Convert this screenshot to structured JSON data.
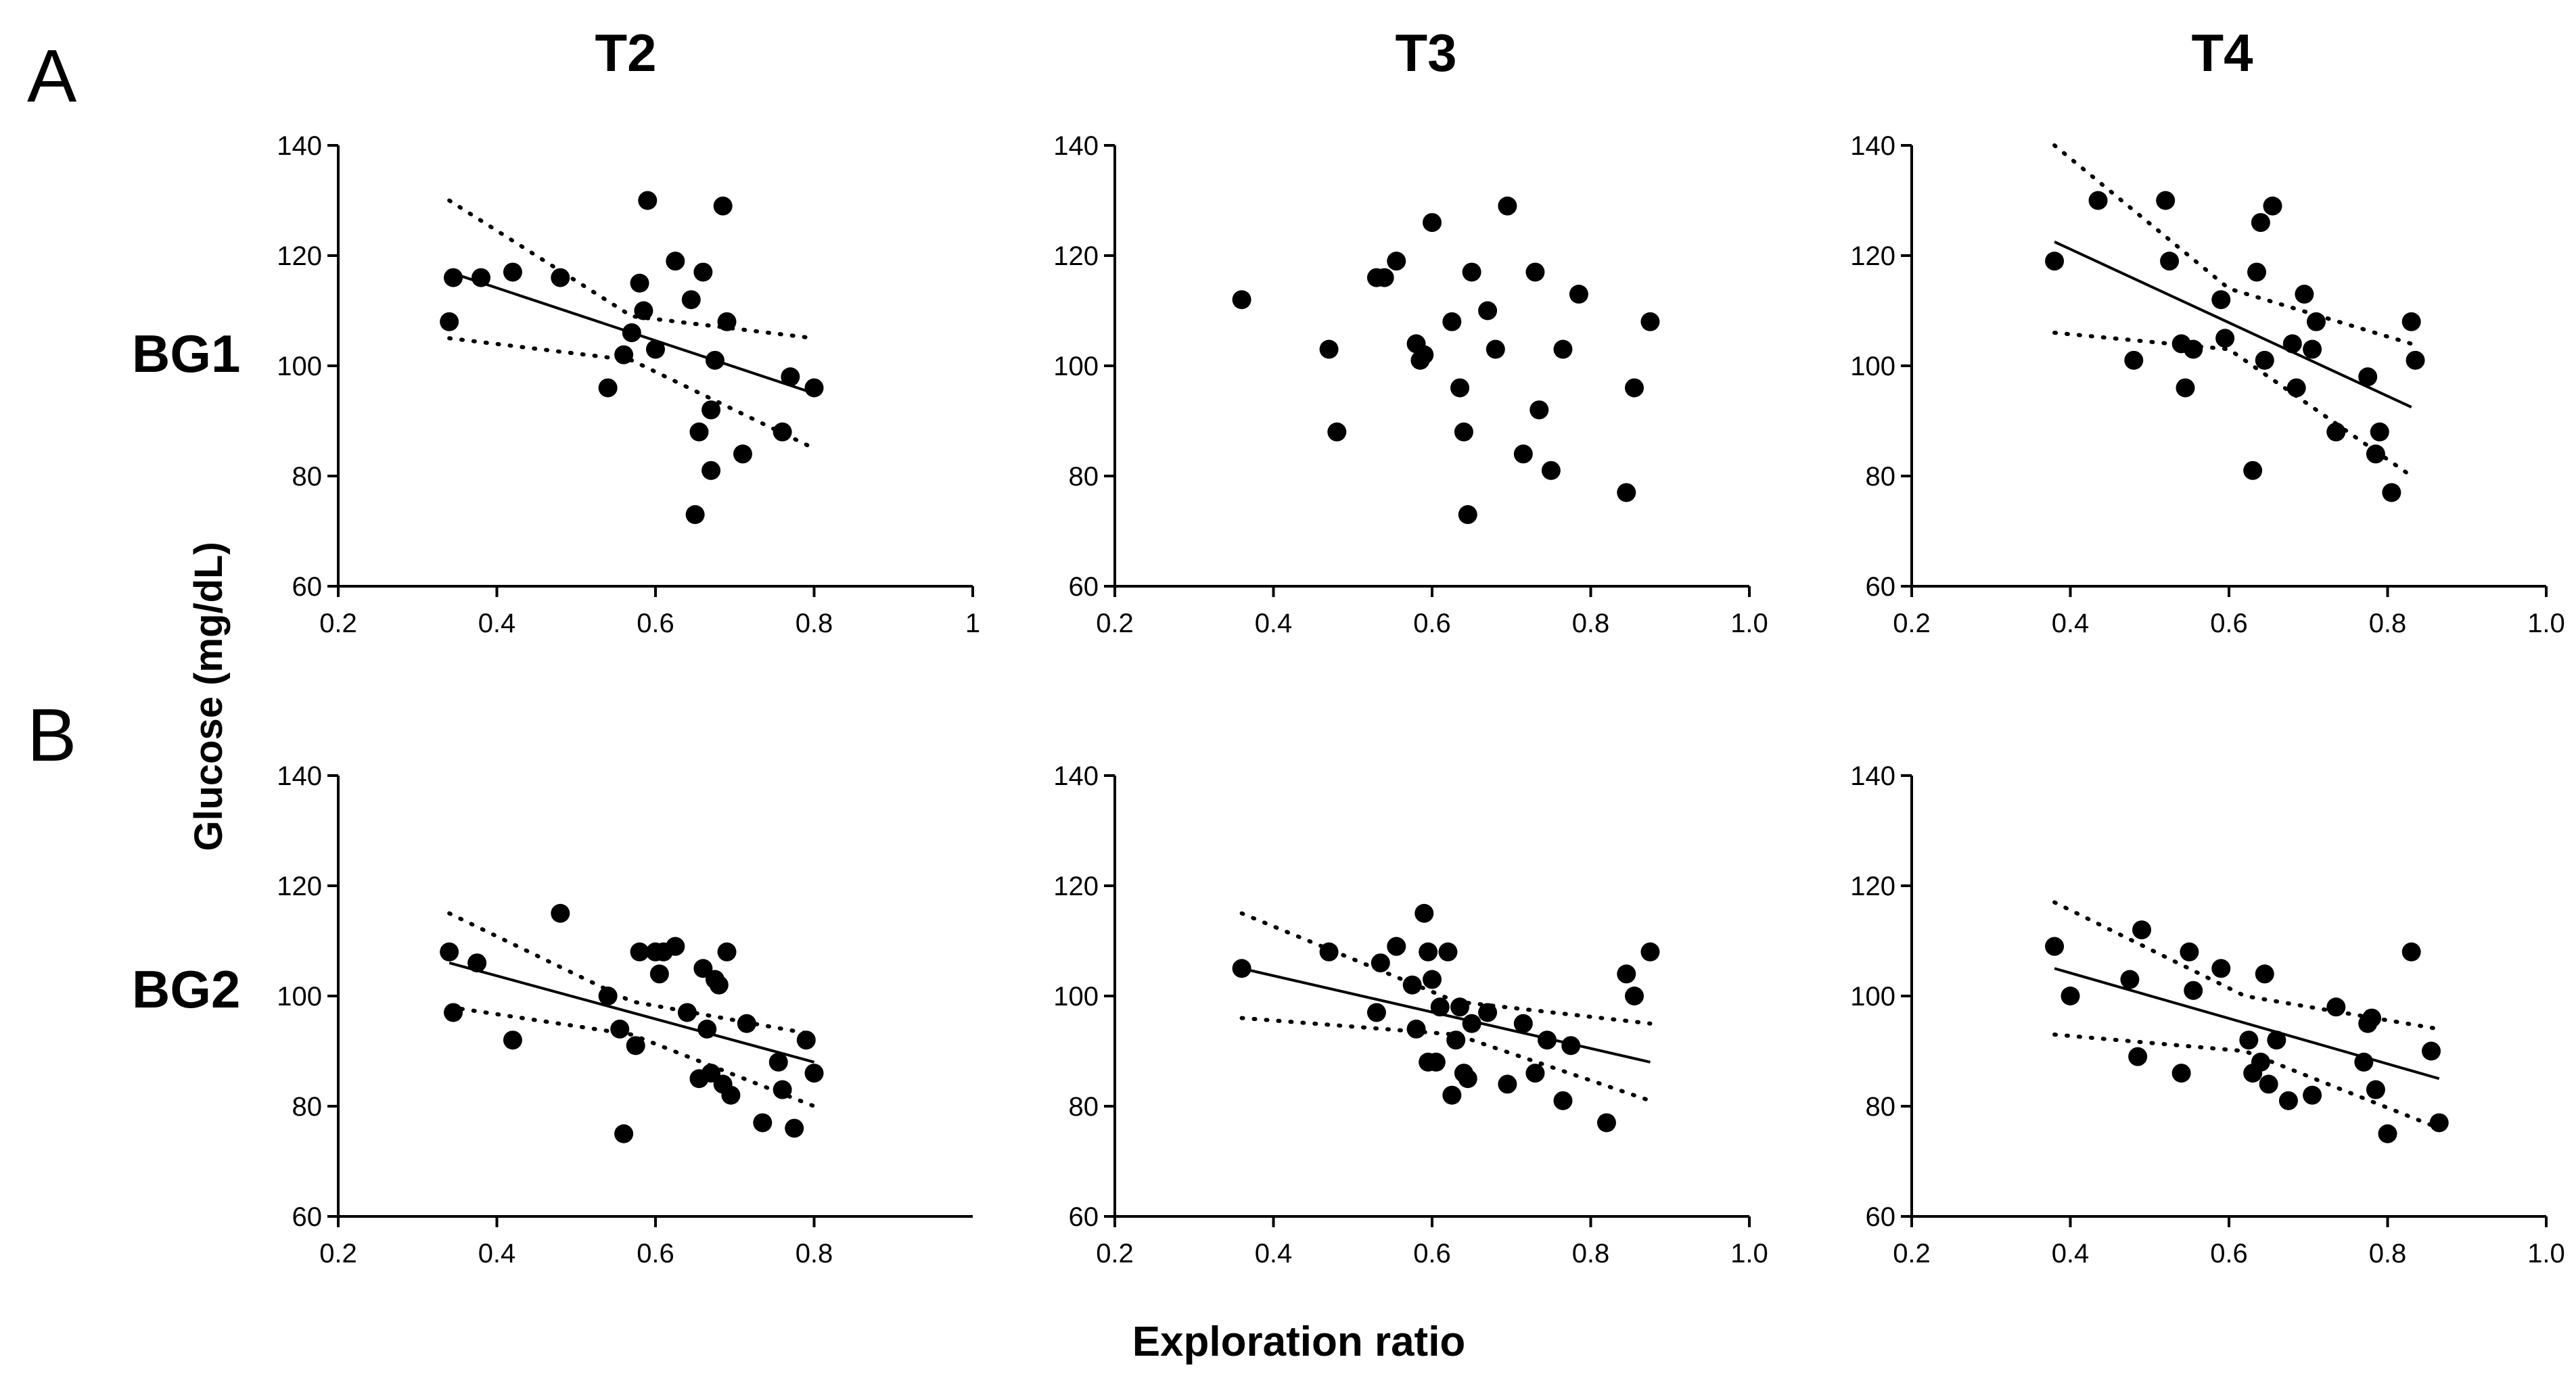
{
  "panel_labels": {
    "a": "A",
    "b": "B"
  },
  "column_titles": [
    "T2",
    "T3",
    "T4"
  ],
  "row_labels": [
    "BG1",
    "BG2"
  ],
  "shared_ylabel": "Glucose (mg/dL)",
  "shared_xlabel": "Exploration ratio",
  "colors": {
    "ink": "#000000",
    "background": "#ffffff"
  },
  "chart_data": [
    {
      "id": "A-T2",
      "type": "scatter",
      "row": 0,
      "col": 0,
      "xlim": [
        0.2,
        1.0
      ],
      "ylim": [
        60,
        140
      ],
      "xticks": [
        0.2,
        0.4,
        0.6,
        0.8,
        1.0
      ],
      "xtick_labels": [
        "0.2",
        "0.4",
        "0.6",
        "0.8",
        "1"
      ],
      "yticks": [
        60,
        80,
        100,
        120,
        140
      ],
      "ytick_labels": [
        "60",
        "80",
        "100",
        "120",
        "140"
      ],
      "x": [
        0.34,
        0.345,
        0.38,
        0.42,
        0.48,
        0.54,
        0.56,
        0.57,
        0.58,
        0.585,
        0.59,
        0.6,
        0.625,
        0.645,
        0.65,
        0.655,
        0.66,
        0.67,
        0.67,
        0.675,
        0.685,
        0.69,
        0.71,
        0.76,
        0.77,
        0.8
      ],
      "y": [
        108,
        116,
        116,
        117,
        116,
        96,
        102,
        106,
        115,
        110,
        130,
        103,
        119,
        112,
        73,
        88,
        117,
        92,
        81,
        101,
        129,
        108,
        84,
        88,
        98,
        96
      ],
      "fit": {
        "x": [
          0.34,
          0.8
        ],
        "y": [
          117,
          95
        ]
      },
      "ci_upper": {
        "x": [
          0.34,
          0.57,
          0.8
        ],
        "y": [
          130,
          109,
          105
        ]
      },
      "ci_lower": {
        "x": [
          0.34,
          0.57,
          0.8
        ],
        "y": [
          105,
          101,
          85
        ]
      }
    },
    {
      "id": "A-T3",
      "type": "scatter",
      "row": 0,
      "col": 1,
      "xlim": [
        0.2,
        1.0
      ],
      "ylim": [
        60,
        140
      ],
      "xticks": [
        0.2,
        0.4,
        0.6,
        0.8,
        1.0
      ],
      "xtick_labels": [
        "0.2",
        "0.4",
        "0.6",
        "0.8",
        "1.0"
      ],
      "yticks": [
        60,
        80,
        100,
        120,
        140
      ],
      "ytick_labels": [
        "60",
        "80",
        "100",
        "120",
        "140"
      ],
      "x": [
        0.36,
        0.47,
        0.48,
        0.53,
        0.54,
        0.555,
        0.58,
        0.585,
        0.59,
        0.6,
        0.625,
        0.635,
        0.64,
        0.645,
        0.65,
        0.67,
        0.68,
        0.695,
        0.715,
        0.73,
        0.735,
        0.75,
        0.765,
        0.785,
        0.845,
        0.855,
        0.875
      ],
      "y": [
        112,
        103,
        88,
        116,
        116,
        119,
        104,
        101,
        102,
        126,
        108,
        96,
        88,
        73,
        117,
        110,
        103,
        129,
        84,
        117,
        92,
        81,
        103,
        113,
        77,
        96,
        108
      ],
      "fit": null,
      "ci_upper": null,
      "ci_lower": null
    },
    {
      "id": "A-T4",
      "type": "scatter",
      "row": 0,
      "col": 2,
      "xlim": [
        0.2,
        1.0
      ],
      "ylim": [
        60,
        140
      ],
      "xticks": [
        0.2,
        0.4,
        0.6,
        0.8,
        1.0
      ],
      "xtick_labels": [
        "0.2",
        "0.4",
        "0.6",
        "0.8",
        "1.0"
      ],
      "yticks": [
        60,
        80,
        100,
        120,
        140
      ],
      "ytick_labels": [
        "60",
        "80",
        "100",
        "120",
        "140"
      ],
      "x": [
        0.38,
        0.435,
        0.48,
        0.52,
        0.525,
        0.54,
        0.545,
        0.555,
        0.59,
        0.595,
        0.63,
        0.635,
        0.64,
        0.645,
        0.655,
        0.68,
        0.685,
        0.695,
        0.705,
        0.71,
        0.735,
        0.775,
        0.785,
        0.79,
        0.805,
        0.83,
        0.835
      ],
      "y": [
        119,
        130,
        101,
        130,
        119,
        104,
        96,
        103,
        112,
        105,
        81,
        117,
        126,
        101,
        129,
        104,
        96,
        113,
        103,
        108,
        88,
        98,
        84,
        88,
        77,
        108,
        101
      ],
      "fit": {
        "x": [
          0.38,
          0.83
        ],
        "y": [
          122.5,
          92.5
        ]
      },
      "ci_upper": {
        "x": [
          0.38,
          0.6,
          0.83
        ],
        "y": [
          140,
          114,
          104
        ]
      },
      "ci_lower": {
        "x": [
          0.38,
          0.6,
          0.83
        ],
        "y": [
          106,
          103,
          80
        ]
      }
    },
    {
      "id": "B-T2",
      "type": "scatter",
      "row": 1,
      "col": 0,
      "xlim": [
        0.2,
        1.0
      ],
      "ylim": [
        60,
        140
      ],
      "xticks": [
        0.2,
        0.4,
        0.6,
        0.8
      ],
      "xtick_labels": [
        "0.2",
        "0.4",
        "0.6",
        "0.8"
      ],
      "yticks": [
        60,
        80,
        100,
        120,
        140
      ],
      "ytick_labels": [
        "60",
        "80",
        "100",
        "120",
        "140"
      ],
      "x": [
        0.34,
        0.345,
        0.375,
        0.42,
        0.48,
        0.54,
        0.555,
        0.56,
        0.575,
        0.58,
        0.6,
        0.605,
        0.61,
        0.625,
        0.64,
        0.655,
        0.66,
        0.665,
        0.67,
        0.675,
        0.68,
        0.685,
        0.69,
        0.695,
        0.715,
        0.735,
        0.755,
        0.76,
        0.775,
        0.79,
        0.8
      ],
      "y": [
        108,
        97,
        106,
        92,
        115,
        100,
        94,
        75,
        91,
        108,
        108,
        104,
        108,
        109,
        97,
        85,
        105,
        94,
        86,
        103,
        102,
        84,
        108,
        82,
        95,
        77,
        88,
        83,
        76,
        92,
        86
      ],
      "fit": {
        "x": [
          0.34,
          0.8
        ],
        "y": [
          106,
          88
        ]
      },
      "ci_upper": {
        "x": [
          0.34,
          0.57,
          0.8
        ],
        "y": [
          115,
          99,
          93
        ]
      },
      "ci_lower": {
        "x": [
          0.34,
          0.57,
          0.8
        ],
        "y": [
          98,
          93,
          80
        ]
      }
    },
    {
      "id": "B-T3",
      "type": "scatter",
      "row": 1,
      "col": 1,
      "xlim": [
        0.2,
        1.0
      ],
      "ylim": [
        60,
        140
      ],
      "xticks": [
        0.2,
        0.4,
        0.6,
        0.8,
        1.0
      ],
      "xtick_labels": [
        "0.2",
        "0.4",
        "0.6",
        "0.8",
        "1.0"
      ],
      "yticks": [
        60,
        80,
        100,
        120,
        140
      ],
      "ytick_labels": [
        "60",
        "80",
        "100",
        "120",
        "140"
      ],
      "x": [
        0.36,
        0.47,
        0.53,
        0.535,
        0.555,
        0.575,
        0.58,
        0.59,
        0.595,
        0.595,
        0.6,
        0.605,
        0.61,
        0.62,
        0.625,
        0.63,
        0.635,
        0.64,
        0.645,
        0.65,
        0.67,
        0.695,
        0.715,
        0.73,
        0.745,
        0.765,
        0.775,
        0.82,
        0.845,
        0.855,
        0.875
      ],
      "y": [
        105,
        108,
        97,
        106,
        109,
        102,
        94,
        115,
        108,
        88,
        103,
        88,
        98,
        108,
        82,
        92,
        98,
        86,
        85,
        95,
        97,
        84,
        95,
        86,
        92,
        81,
        91,
        77,
        104,
        100,
        108
      ],
      "fit": {
        "x": [
          0.36,
          0.875
        ],
        "y": [
          105,
          88
        ]
      },
      "ci_upper": {
        "x": [
          0.36,
          0.63,
          0.875
        ],
        "y": [
          115,
          99,
          95
        ]
      },
      "ci_lower": {
        "x": [
          0.36,
          0.63,
          0.875
        ],
        "y": [
          96,
          93,
          81
        ]
      }
    },
    {
      "id": "B-T4",
      "type": "scatter",
      "row": 1,
      "col": 2,
      "xlim": [
        0.2,
        1.0
      ],
      "ylim": [
        60,
        140
      ],
      "xticks": [
        0.2,
        0.4,
        0.6,
        0.8,
        1.0
      ],
      "xtick_labels": [
        "0.2",
        "0.4",
        "0.6",
        "0.8",
        "1.0"
      ],
      "yticks": [
        60,
        80,
        100,
        120,
        140
      ],
      "ytick_labels": [
        "60",
        "80",
        "100",
        "120",
        "140"
      ],
      "x": [
        0.38,
        0.4,
        0.475,
        0.485,
        0.49,
        0.54,
        0.55,
        0.555,
        0.59,
        0.625,
        0.63,
        0.64,
        0.645,
        0.65,
        0.66,
        0.675,
        0.705,
        0.735,
        0.77,
        0.775,
        0.78,
        0.785,
        0.8,
        0.83,
        0.855,
        0.865
      ],
      "y": [
        109,
        100,
        103,
        89,
        112,
        86,
        108,
        101,
        105,
        92,
        86,
        88,
        104,
        84,
        92,
        81,
        82,
        98,
        88,
        95,
        96,
        83,
        75,
        108,
        90,
        77
      ],
      "fit": {
        "x": [
          0.38,
          0.865
        ],
        "y": [
          105,
          85
        ]
      },
      "ci_upper": {
        "x": [
          0.38,
          0.62,
          0.865
        ],
        "y": [
          117,
          100,
          94
        ]
      },
      "ci_lower": {
        "x": [
          0.38,
          0.62,
          0.865
        ],
        "y": [
          93,
          90,
          76
        ]
      }
    }
  ]
}
